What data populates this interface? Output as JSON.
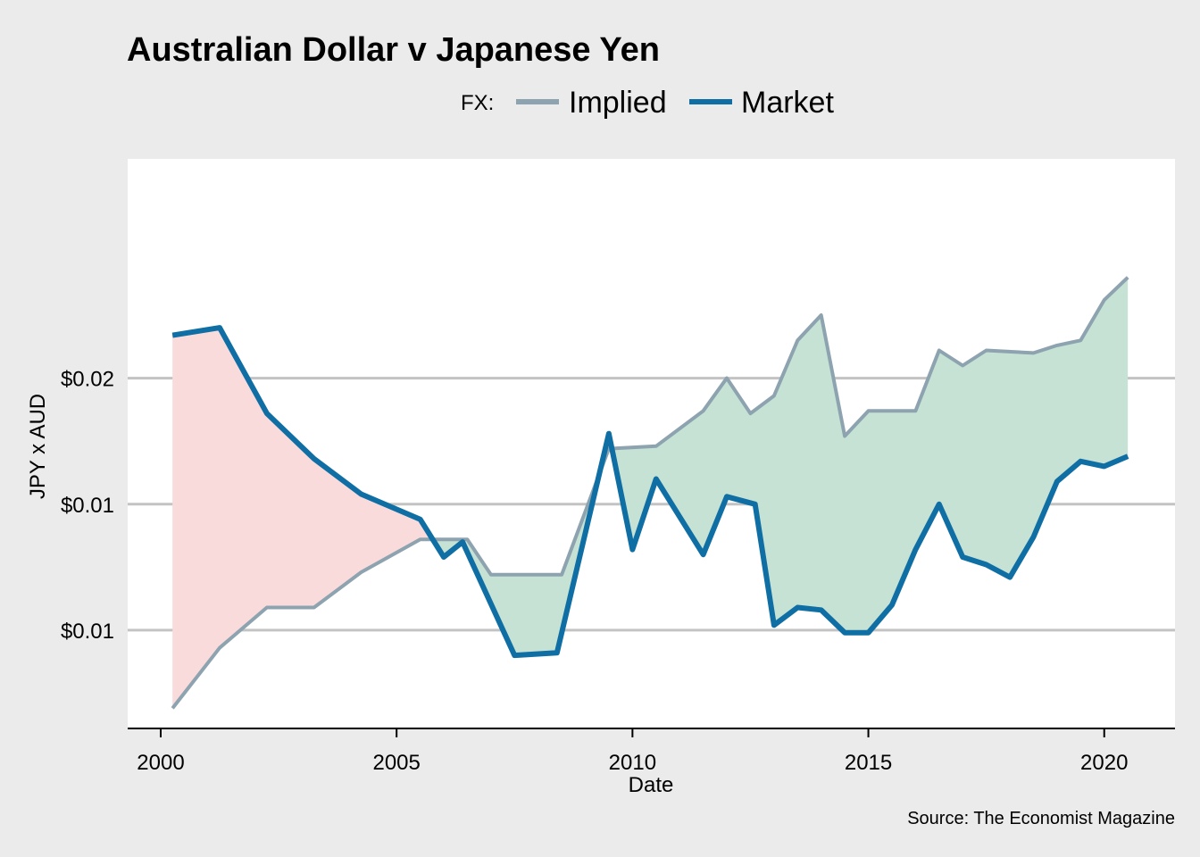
{
  "chart_data": {
    "type": "line",
    "title": "Australian Dollar v Japanese Yen",
    "legend_label": "FX:",
    "xlabel": "Date",
    "ylabel": "JPY x AUD",
    "caption": "Source: The Economist Magazine",
    "xlim": [
      1999.3,
      2021.5
    ],
    "ylim": [
      0.0036,
      0.0262
    ],
    "x_ticks": [
      2000,
      2005,
      2010,
      2015,
      2020
    ],
    "y_ticks": [
      {
        "value": 0.0075,
        "label": "$0.01"
      },
      {
        "value": 0.0125,
        "label": "$0.01"
      },
      {
        "value": 0.0175,
        "label": "$0.02"
      }
    ],
    "fill_colors": {
      "implied_below": "#fadbdc",
      "implied_above": "#c6e2d4"
    },
    "series": [
      {
        "name": "Implied",
        "color": "#8ea3b0",
        "x": [
          2000.25,
          2001.25,
          2002.25,
          2003.25,
          2004.25,
          2005.5,
          2006.5,
          2007.0,
          2008.0,
          2008.5,
          2009.5,
          2010.5,
          2011.5,
          2012.0,
          2012.5,
          2013.0,
          2013.5,
          2014.0,
          2014.5,
          2015.0,
          2016.0,
          2016.5,
          2017.0,
          2017.5,
          2018.5,
          2019.0,
          2019.5,
          2020.0,
          2020.5
        ],
        "values": [
          0.0044,
          0.0068,
          0.0084,
          0.0084,
          0.0098,
          0.0111,
          0.0111,
          0.0097,
          0.0097,
          0.0097,
          0.0147,
          0.0148,
          0.0162,
          0.0175,
          0.0161,
          0.0168,
          0.019,
          0.02,
          0.0152,
          0.0162,
          0.0162,
          0.0186,
          0.018,
          0.0186,
          0.0185,
          0.0188,
          0.019,
          0.0206,
          0.0215
        ]
      },
      {
        "name": "Market",
        "color": "#0f6ea3",
        "x": [
          2000.25,
          2001.25,
          2002.25,
          2003.25,
          2004.25,
          2005.5,
          2006.0,
          2006.4,
          2007.5,
          2008.4,
          2009.5,
          2010.0,
          2010.5,
          2011.5,
          2012.0,
          2012.6,
          2013.0,
          2013.5,
          2014.0,
          2014.5,
          2015.0,
          2015.5,
          2016.0,
          2016.5,
          2017.0,
          2017.5,
          2018.0,
          2018.5,
          2019.0,
          2019.5,
          2020.0,
          2020.5
        ],
        "values": [
          0.0192,
          0.0195,
          0.0161,
          0.0143,
          0.0129,
          0.0119,
          0.0104,
          0.011,
          0.0065,
          0.0066,
          0.0153,
          0.0107,
          0.0135,
          0.0105,
          0.0128,
          0.0125,
          0.0077,
          0.0084,
          0.0083,
          0.0074,
          0.0074,
          0.0085,
          0.0107,
          0.0125,
          0.0104,
          0.0101,
          0.0096,
          0.0112,
          0.0134,
          0.0142,
          0.014,
          0.0144
        ]
      }
    ]
  }
}
